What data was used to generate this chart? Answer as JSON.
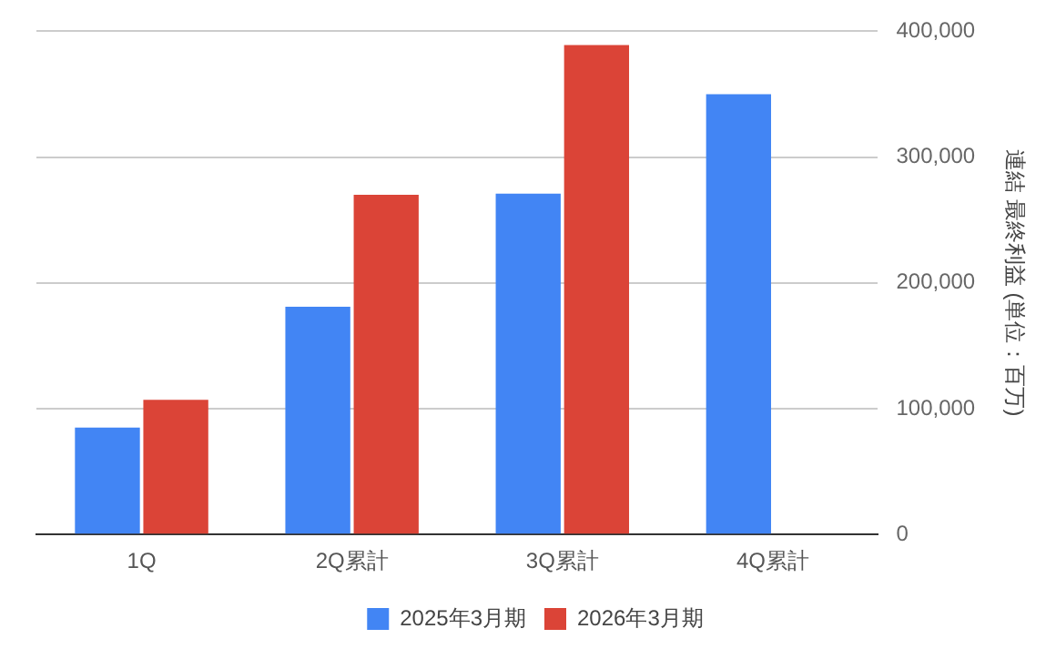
{
  "chart_data": {
    "type": "bar",
    "ylabel": "連結 最終利益 (単位：百万)",
    "categories": [
      "1Q",
      "2Q累計",
      "3Q累計",
      "4Q累計"
    ],
    "series": [
      {
        "name": "2025年3月期",
        "color": "#4285f4",
        "values": [
          85000,
          181000,
          271000,
          350000
        ]
      },
      {
        "name": "2026年3月期",
        "color": "#db4437",
        "values": [
          107000,
          270000,
          389000,
          null
        ]
      }
    ],
    "ylim": [
      0,
      400000
    ],
    "yticks": [
      {
        "value": 0,
        "label": "0"
      },
      {
        "value": 100000,
        "label": "100,000"
      },
      {
        "value": 200000,
        "label": "200,000"
      },
      {
        "value": 300000,
        "label": "300,000"
      },
      {
        "value": 400000,
        "label": "400,000"
      }
    ],
    "grid": "y",
    "legend": "bottom"
  }
}
